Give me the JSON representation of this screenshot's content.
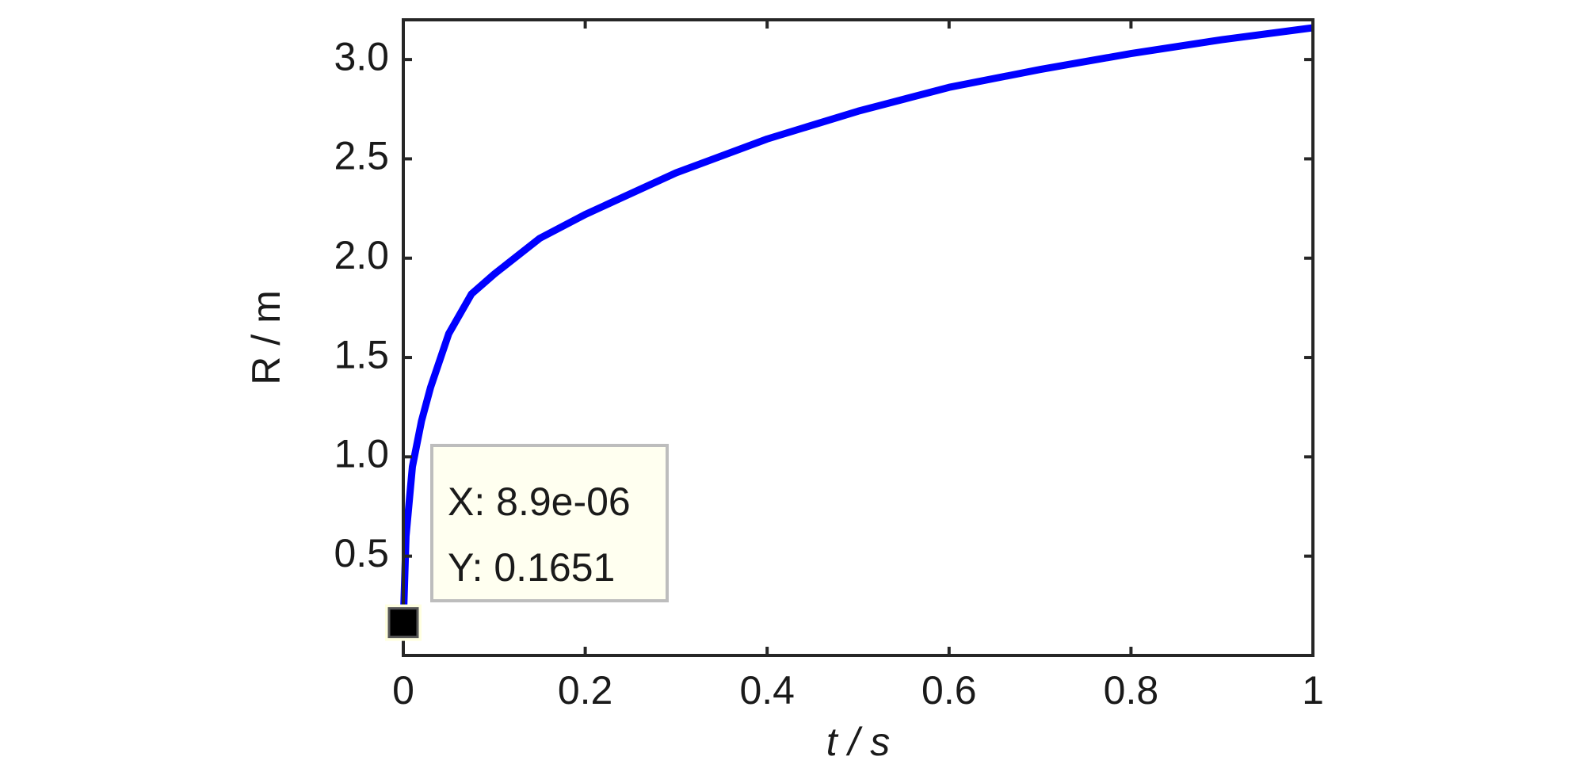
{
  "chart_data": {
    "type": "line",
    "xlabel": "t / s",
    "ylabel": "R / m",
    "x": [
      8.9e-06,
      0.003,
      0.01,
      0.02,
      0.03,
      0.05,
      0.075,
      0.1,
      0.15,
      0.2,
      0.3,
      0.4,
      0.5,
      0.6,
      0.7,
      0.8,
      0.9,
      1.0
    ],
    "series": [
      {
        "name": "R",
        "color": "#0000ff",
        "values": [
          0.1651,
          0.6,
          0.95,
          1.18,
          1.35,
          1.62,
          1.82,
          1.92,
          2.1,
          2.22,
          2.43,
          2.6,
          2.74,
          2.86,
          2.95,
          3.03,
          3.1,
          3.16
        ]
      }
    ],
    "xlim": [
      0,
      1
    ],
    "ylim": [
      0,
      3.2
    ],
    "xticks": [
      0,
      0.2,
      0.4,
      0.6,
      0.8,
      1
    ],
    "yticks": [
      0.5,
      {
        "value": 1,
        "label": "1.0"
      },
      1.5,
      {
        "value": 2,
        "label": "2.0"
      },
      2.5,
      {
        "value": 3,
        "label": "3.0"
      }
    ],
    "grid": false,
    "datatip": {
      "x": 8.9e-06,
      "y": 0.1651,
      "x_label": "X: 8.9e-06",
      "y_label": "Y: 0.1651"
    }
  }
}
